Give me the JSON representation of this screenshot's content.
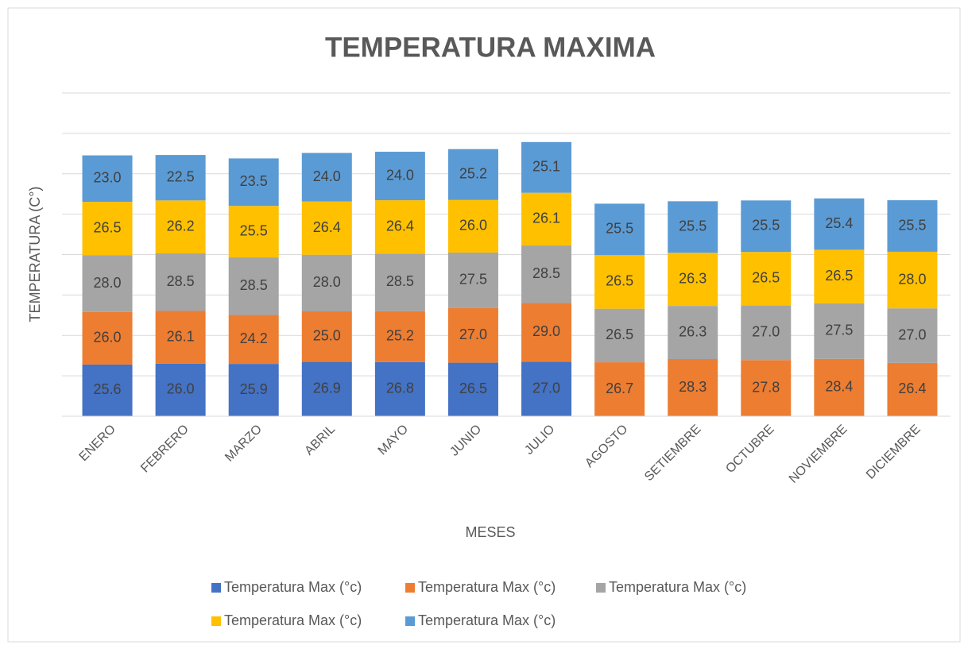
{
  "chart_data": {
    "type": "stacked_bar",
    "title": "TEMPERATURA MAXIMA",
    "x_label": "MESES",
    "y_label": "TEMPERATURA (C°)",
    "categories": [
      "ENERO",
      "FEBRERO",
      "MARZO",
      "ABRIL",
      "MAYO",
      "JUNIO",
      "JULIO",
      "AGOSTO",
      "SETIEMBRE",
      "OCTUBRE",
      "NOVIEMBRE",
      "DICIEMBRE"
    ],
    "series": [
      {
        "name": "Temperatura Max (°c)",
        "color": "#4472c4",
        "values": [
          25.6,
          26.0,
          25.9,
          26.9,
          26.8,
          26.5,
          27.0,
          null,
          null,
          null,
          null,
          null
        ],
        "value_labels": [
          "25.6",
          "26.0",
          "25.9",
          "26.9",
          "26.8",
          "26.5",
          "27.0",
          null,
          null,
          null,
          null,
          null
        ]
      },
      {
        "name": "Temperatura Max (°c)",
        "color": "#ed7d31",
        "values": [
          26.0,
          26.1,
          24.2,
          25.0,
          25.2,
          27.0,
          29.0,
          26.7,
          28.3,
          27.8,
          28.4,
          26.4
        ],
        "value_labels": [
          "26.0",
          "26.1",
          "24.2",
          "25.0",
          "25.2",
          "27.0",
          "29.0",
          "26.7",
          "28.3",
          "27.8",
          "28.4",
          "26.4"
        ]
      },
      {
        "name": "Temperatura Max (°c)",
        "color": "#a5a5a5",
        "values": [
          28.0,
          28.5,
          28.5,
          28.0,
          28.5,
          27.5,
          28.5,
          26.5,
          26.3,
          27.0,
          27.5,
          27.0
        ],
        "value_labels": [
          "28.0",
          "28.5",
          "28.5",
          "28.0",
          "28.5",
          "27.5",
          "28.5",
          "26.5",
          "26.3",
          "27.0",
          "27.5",
          "27.0"
        ]
      },
      {
        "name": "Temperatura Max (°c)",
        "color": "#ffc000",
        "values": [
          26.5,
          26.2,
          25.5,
          26.4,
          26.4,
          26.0,
          26.1,
          26.5,
          26.3,
          26.5,
          26.5,
          28.0
        ],
        "value_labels": [
          "26.5",
          "26.2",
          "25.5",
          "26.4",
          "26.4",
          "26.0",
          "26.1",
          "26.5",
          "26.3",
          "26.5",
          "26.5",
          "28.0"
        ]
      },
      {
        "name": "Temperatura Max (°c)",
        "color": "#5b9bd5",
        "values": [
          23.0,
          22.5,
          23.5,
          24.0,
          24.0,
          25.2,
          25.1,
          25.5,
          25.5,
          25.5,
          25.4,
          25.5
        ],
        "value_labels": [
          "23.0",
          "22.5",
          "23.5",
          "24.0",
          "24.0",
          "25.2",
          "25.1",
          "25.5",
          "25.5",
          "25.5",
          "25.4",
          "25.5"
        ]
      }
    ],
    "ylim": [
      0,
      160
    ],
    "yticks": [
      0,
      20,
      40,
      60,
      80,
      100,
      120,
      140,
      160
    ],
    "grid": true
  }
}
